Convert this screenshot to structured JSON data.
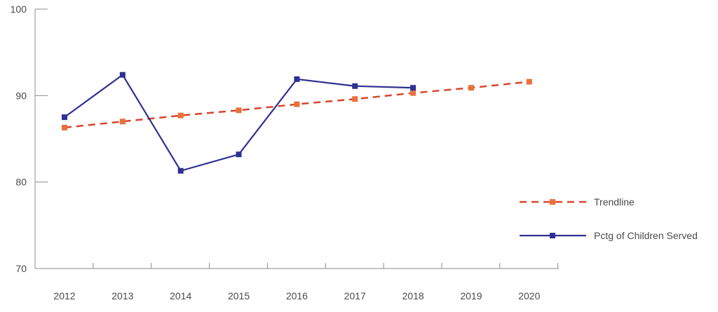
{
  "chart_data": {
    "type": "line",
    "x": [
      "2012",
      "2013",
      "2014",
      "2015",
      "2016",
      "2017",
      "2018",
      "2019",
      "2020"
    ],
    "ylim": [
      70,
      100
    ],
    "yticks": [
      "70",
      "80",
      "90",
      "100"
    ],
    "grid": false,
    "legend_position": "right",
    "series": [
      {
        "name": "Trendline",
        "color": "#e8713a",
        "line_color": "#d9442b",
        "dashed": true,
        "marker": "square",
        "values": [
          86.3,
          87.0,
          87.7,
          88.3,
          89.0,
          89.6,
          90.3,
          90.9,
          91.6
        ]
      },
      {
        "name": "Pctg of Children Served",
        "color": "#2e3192",
        "line_color": "#2e3192",
        "dashed": false,
        "marker": "square",
        "values": [
          87.5,
          92.4,
          81.3,
          83.2,
          91.9,
          91.1,
          90.9,
          null,
          null
        ]
      }
    ],
    "title": "",
    "xlabel": "",
    "ylabel": ""
  }
}
